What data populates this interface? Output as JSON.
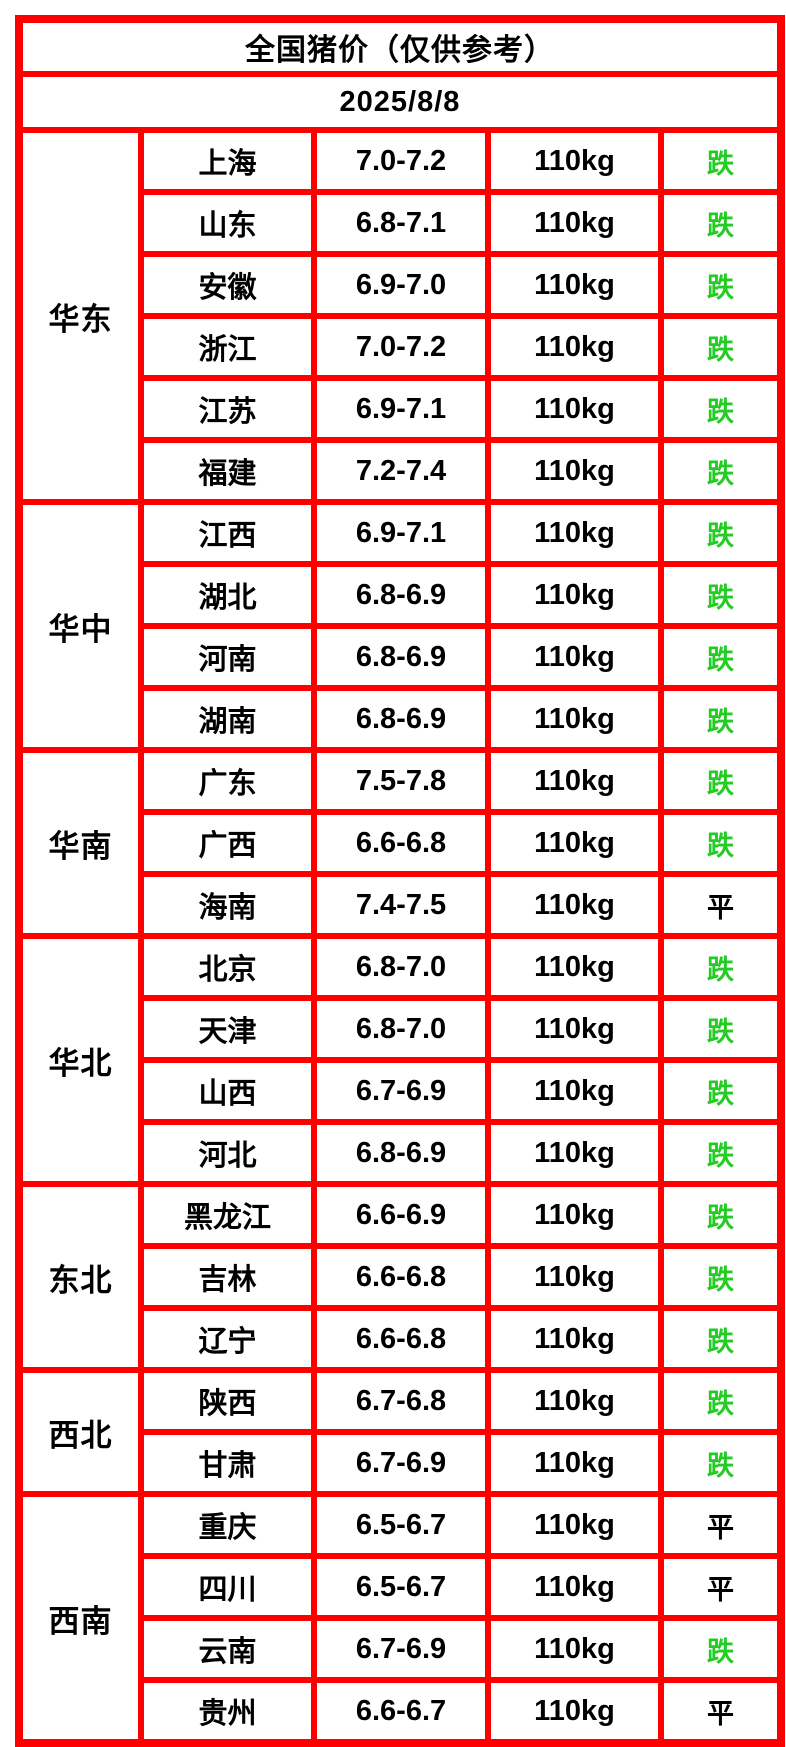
{
  "header": {
    "title": "全国猪价（仅供参考）",
    "date": "2025/8/8"
  },
  "colors": {
    "header_bg": "#EC6217",
    "border": "#FF0000",
    "cell_bg": "#FFFFFF",
    "text": "#000000",
    "status_fall": "#22CC22",
    "status_flat": "#000000"
  },
  "status_colors": {
    "跌": "#22CC22",
    "平": "#000000"
  },
  "chart_data": {
    "type": "table",
    "title": "全国猪价（仅供参考）",
    "date": "2025/8/8",
    "regions": [
      {
        "name": "华东",
        "rows": [
          {
            "province": "上海",
            "price": "7.0-7.2",
            "weight": "110kg",
            "status": "跌"
          },
          {
            "province": "山东",
            "price": "6.8-7.1",
            "weight": "110kg",
            "status": "跌"
          },
          {
            "province": "安徽",
            "price": "6.9-7.0",
            "weight": "110kg",
            "status": "跌"
          },
          {
            "province": "浙江",
            "price": "7.0-7.2",
            "weight": "110kg",
            "status": "跌"
          },
          {
            "province": "江苏",
            "price": "6.9-7.1",
            "weight": "110kg",
            "status": "跌"
          },
          {
            "province": "福建",
            "price": "7.2-7.4",
            "weight": "110kg",
            "status": "跌"
          }
        ]
      },
      {
        "name": "华中",
        "rows": [
          {
            "province": "江西",
            "price": "6.9-7.1",
            "weight": "110kg",
            "status": "跌"
          },
          {
            "province": "湖北",
            "price": "6.8-6.9",
            "weight": "110kg",
            "status": "跌"
          },
          {
            "province": "河南",
            "price": "6.8-6.9",
            "weight": "110kg",
            "status": "跌"
          },
          {
            "province": "湖南",
            "price": "6.8-6.9",
            "weight": "110kg",
            "status": "跌"
          }
        ]
      },
      {
        "name": "华南",
        "rows": [
          {
            "province": "广东",
            "price": "7.5-7.8",
            "weight": "110kg",
            "status": "跌"
          },
          {
            "province": "广西",
            "price": "6.6-6.8",
            "weight": "110kg",
            "status": "跌"
          },
          {
            "province": "海南",
            "price": "7.4-7.5",
            "weight": "110kg",
            "status": "平"
          }
        ]
      },
      {
        "name": "华北",
        "rows": [
          {
            "province": "北京",
            "price": "6.8-7.0",
            "weight": "110kg",
            "status": "跌"
          },
          {
            "province": "天津",
            "price": "6.8-7.0",
            "weight": "110kg",
            "status": "跌"
          },
          {
            "province": "山西",
            "price": "6.7-6.9",
            "weight": "110kg",
            "status": "跌"
          },
          {
            "province": "河北",
            "price": "6.8-6.9",
            "weight": "110kg",
            "status": "跌"
          }
        ]
      },
      {
        "name": "东北",
        "rows": [
          {
            "province": "黑龙江",
            "price": "6.6-6.9",
            "weight": "110kg",
            "status": "跌"
          },
          {
            "province": "吉林",
            "price": "6.6-6.8",
            "weight": "110kg",
            "status": "跌"
          },
          {
            "province": "辽宁",
            "price": "6.6-6.8",
            "weight": "110kg",
            "status": "跌"
          }
        ]
      },
      {
        "name": "西北",
        "rows": [
          {
            "province": "陕西",
            "price": "6.7-6.8",
            "weight": "110kg",
            "status": "跌"
          },
          {
            "province": "甘肃",
            "price": "6.7-6.9",
            "weight": "110kg",
            "status": "跌"
          }
        ]
      },
      {
        "name": "西南",
        "rows": [
          {
            "province": "重庆",
            "price": "6.5-6.7",
            "weight": "110kg",
            "status": "平"
          },
          {
            "province": "四川",
            "price": "6.5-6.7",
            "weight": "110kg",
            "status": "平"
          },
          {
            "province": "云南",
            "price": "6.7-6.9",
            "weight": "110kg",
            "status": "跌"
          },
          {
            "province": "贵州",
            "price": "6.6-6.7",
            "weight": "110kg",
            "status": "平"
          }
        ]
      }
    ]
  }
}
